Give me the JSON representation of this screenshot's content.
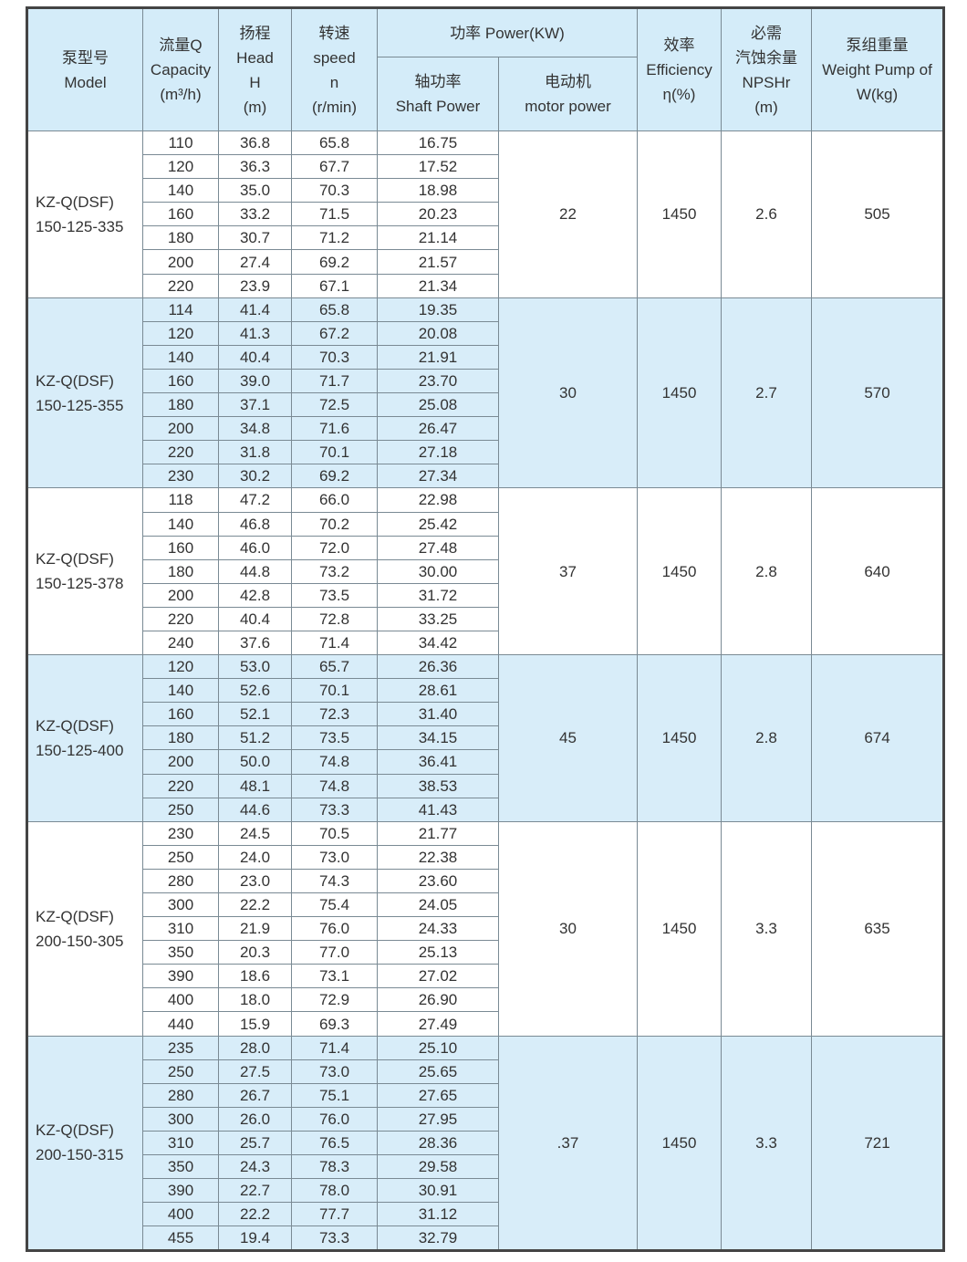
{
  "header": {
    "model": [
      "泵型号",
      "Model"
    ],
    "capacity": [
      "流量Q",
      "Capacity",
      "(m³/h)"
    ],
    "head": [
      "扬程",
      "Head",
      "H",
      "(m)"
    ],
    "speed": [
      "转速",
      "speed",
      "n",
      "(r/min)"
    ],
    "power": "功率 Power(KW)",
    "shaft_power": [
      "轴功率",
      "Shaft Power"
    ],
    "motor_power": [
      "电动机",
      "motor power"
    ],
    "efficiency": [
      "效率",
      "Efficiency",
      "η(%)"
    ],
    "npshr": [
      "必需",
      "汽蚀余量",
      "NPSHr",
      "(m)"
    ],
    "weight": [
      "泵组重量",
      "Weight Pump of",
      "W(kg)"
    ]
  },
  "colors": {
    "header_bg": "#d4ecf9",
    "shade_bg": "#d8edf9",
    "border": "#7a8a94"
  },
  "groups": [
    {
      "model": [
        "KZ-Q(DSF)",
        "150-125-335"
      ],
      "motor": "22",
      "efficiency": "1450",
      "npshr": "2.6",
      "weight": "505",
      "shaded": false,
      "rows": [
        [
          "110",
          "36.8",
          "65.8",
          "16.75"
        ],
        [
          "120",
          "36.3",
          "67.7",
          "17.52"
        ],
        [
          "140",
          "35.0",
          "70.3",
          "18.98"
        ],
        [
          "160",
          "33.2",
          "71.5",
          "20.23"
        ],
        [
          "180",
          "30.7",
          "71.2",
          "21.14"
        ],
        [
          "200",
          "27.4",
          "69.2",
          "21.57"
        ],
        [
          "220",
          "23.9",
          "67.1",
          "21.34"
        ]
      ]
    },
    {
      "model": [
        "KZ-Q(DSF)",
        "150-125-355"
      ],
      "motor": "30",
      "efficiency": "1450",
      "npshr": "2.7",
      "weight": "570",
      "shaded": true,
      "rows": [
        [
          "114",
          "41.4",
          "65.8",
          "19.35"
        ],
        [
          "120",
          "41.3",
          "67.2",
          "20.08"
        ],
        [
          "140",
          "40.4",
          "70.3",
          "21.91"
        ],
        [
          "160",
          "39.0",
          "71.7",
          "23.70"
        ],
        [
          "180",
          "37.1",
          "72.5",
          "25.08"
        ],
        [
          "200",
          "34.8",
          "71.6",
          "26.47"
        ],
        [
          "220",
          "31.8",
          "70.1",
          "27.18"
        ],
        [
          "230",
          "30.2",
          "69.2",
          "27.34"
        ]
      ]
    },
    {
      "model": [
        "KZ-Q(DSF)",
        "150-125-378"
      ],
      "motor": "37",
      "efficiency": "1450",
      "npshr": "2.8",
      "weight": "640",
      "shaded": false,
      "rows": [
        [
          "118",
          "47.2",
          "66.0",
          "22.98"
        ],
        [
          "140",
          "46.8",
          "70.2",
          "25.42"
        ],
        [
          "160",
          "46.0",
          "72.0",
          "27.48"
        ],
        [
          "180",
          "44.8",
          "73.2",
          "30.00"
        ],
        [
          "200",
          "42.8",
          "73.5",
          "31.72"
        ],
        [
          "220",
          "40.4",
          "72.8",
          "33.25"
        ],
        [
          "240",
          "37.6",
          "71.4",
          "34.42"
        ]
      ]
    },
    {
      "model": [
        "KZ-Q(DSF)",
        "150-125-400"
      ],
      "motor": "45",
      "efficiency": "1450",
      "npshr": "2.8",
      "weight": "674",
      "shaded": true,
      "rows": [
        [
          "120",
          "53.0",
          "65.7",
          "26.36"
        ],
        [
          "140",
          "52.6",
          "70.1",
          "28.61"
        ],
        [
          "160",
          "52.1",
          "72.3",
          "31.40"
        ],
        [
          "180",
          "51.2",
          "73.5",
          "34.15"
        ],
        [
          "200",
          "50.0",
          "74.8",
          "36.41"
        ],
        [
          "220",
          "48.1",
          "74.8",
          "38.53"
        ],
        [
          "250",
          "44.6",
          "73.3",
          "41.43"
        ]
      ]
    },
    {
      "model": [
        "KZ-Q(DSF)",
        "200-150-305"
      ],
      "motor": "30",
      "efficiency": "1450",
      "npshr": "3.3",
      "weight": "635",
      "shaded": false,
      "rows": [
        [
          "230",
          "24.5",
          "70.5",
          "21.77"
        ],
        [
          "250",
          "24.0",
          "73.0",
          "22.38"
        ],
        [
          "280",
          "23.0",
          "74.3",
          "23.60"
        ],
        [
          "300",
          "22.2",
          "75.4",
          "24.05"
        ],
        [
          "310",
          "21.9",
          "76.0",
          "24.33"
        ],
        [
          "350",
          "20.3",
          "77.0",
          "25.13"
        ],
        [
          "390",
          "18.6",
          "73.1",
          "27.02"
        ],
        [
          "400",
          "18.0",
          "72.9",
          "26.90"
        ],
        [
          "440",
          "15.9",
          "69.3",
          "27.49"
        ]
      ]
    },
    {
      "model": [
        "KZ-Q(DSF)",
        "200-150-315"
      ],
      "motor": ".37",
      "efficiency": "1450",
      "npshr": "3.3",
      "weight": "721",
      "shaded": true,
      "rows": [
        [
          "235",
          "28.0",
          "71.4",
          "25.10"
        ],
        [
          "250",
          "27.5",
          "73.0",
          "25.65"
        ],
        [
          "280",
          "26.7",
          "75.1",
          "27.65"
        ],
        [
          "300",
          "26.0",
          "76.0",
          "27.95"
        ],
        [
          "310",
          "25.7",
          "76.5",
          "28.36"
        ],
        [
          "350",
          "24.3",
          "78.3",
          "29.58"
        ],
        [
          "390",
          "22.7",
          "78.0",
          "30.91"
        ],
        [
          "400",
          "22.2",
          "77.7",
          "31.12"
        ],
        [
          "455",
          "19.4",
          "73.3",
          "32.79"
        ]
      ]
    }
  ]
}
